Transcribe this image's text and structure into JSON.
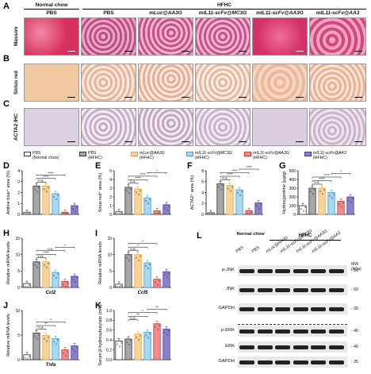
{
  "panels": {
    "A": "A",
    "B": "B",
    "C": "C",
    "D": "D",
    "E": "E",
    "F": "F",
    "G": "G",
    "H": "H",
    "I": "I",
    "J": "J",
    "K": "K",
    "L": "L"
  },
  "headers": {
    "normal_chow": "Normal chow",
    "hfhc": "HFHC"
  },
  "column_labels": [
    "PBS",
    "PBS",
    "mLuc@AA3G",
    "mIL11-scFv@MC3G",
    "mIL11-scFv@AA3G",
    "mIL11-scFv@AA3"
  ],
  "row_labels": [
    "Masson",
    "Sirius red",
    "ACTA2 IHC"
  ],
  "legend": [
    {
      "label": "PBS",
      "sub": "(Normal chow)",
      "color": "#ffffff",
      "border": "#333333"
    },
    {
      "label": "PBS",
      "sub": "(HFHC)",
      "color": "#a6a6a6",
      "border": "#333333"
    },
    {
      "label": "mLuc@AA3G",
      "sub": "(HFHC)",
      "color": "#f9d49a",
      "border": "#f0a030"
    },
    {
      "label": "mIL11-scFv@MC3G",
      "sub": "(HFHC)",
      "color": "#a9d8f2",
      "border": "#3aa0d8"
    },
    {
      "label": "mIL11-scFv@AA3G",
      "sub": "(HFHC)",
      "color": "#f28b8b",
      "border": "#d62e2e"
    },
    {
      "label": "mIL11-scFv@AA3",
      "sub": "(HFHC)",
      "color": "#8c7fd0",
      "border": "#43359e"
    }
  ],
  "chart_data": [
    {
      "panel": "D",
      "type": "bar",
      "ylabel": "Aniline blue⁺ area (%)",
      "ylim": [
        0,
        4
      ],
      "yticks": [
        "0",
        "1",
        "2",
        "3",
        "4"
      ],
      "values": [
        0.2,
        2.6,
        2.6,
        1.9,
        0.2,
        0.8
      ],
      "sig": [
        "n.s.",
        "****",
        "****"
      ]
    },
    {
      "panel": "E",
      "type": "bar",
      "ylabel": "Sirius red⁺ area (%)",
      "ylim": [
        0,
        5
      ],
      "yticks": [
        "0",
        "1",
        "2",
        "3",
        "4",
        "5"
      ],
      "values": [
        0.3,
        3.1,
        2.9,
        1.9,
        0.4,
        1.1
      ],
      "sig": [
        "n.s.",
        "****",
        "****",
        "*"
      ]
    },
    {
      "panel": "F",
      "type": "bar",
      "ylabel": "ACTA2⁺ area (%)",
      "ylim": [
        0,
        8
      ],
      "yticks": [
        "0",
        "2",
        "4",
        "6",
        "8"
      ],
      "values": [
        0.3,
        5.6,
        5.3,
        4.5,
        0.7,
        2.1
      ],
      "sig": [
        "n.s.",
        "****",
        "****",
        "****"
      ]
    },
    {
      "panel": "G",
      "type": "bar",
      "ylabel": "Hydroxyproline (μg/g)",
      "ylim": [
        0,
        500
      ],
      "yticks": [
        "0",
        "100",
        "200",
        "300",
        "400",
        "500"
      ],
      "values": [
        100,
        300,
        300,
        250,
        150,
        200
      ],
      "sig": [
        "n.s.",
        "****",
        "****",
        "*"
      ]
    },
    {
      "panel": "H",
      "type": "bar",
      "ylabel": "Relative mRNA levels",
      "gene": "Ccl2",
      "ylim": [
        0,
        15
      ],
      "yticks": [
        "0",
        "5",
        "10",
        "15"
      ],
      "values": [
        1.2,
        7.8,
        7.8,
        4.6,
        1.8,
        3.4
      ],
      "sig": [
        "n.s.",
        "****",
        "n.s.",
        "*"
      ]
    },
    {
      "panel": "I",
      "type": "bar",
      "ylabel": "Relative mRNA levels",
      "gene": "Ccl5",
      "ylim": [
        0,
        15
      ],
      "yticks": [
        "0",
        "5",
        "10",
        "15"
      ],
      "values": [
        1.0,
        10.0,
        10.0,
        7.5,
        2.5,
        4.8
      ],
      "sig": [
        "n.s.",
        "*",
        "*"
      ]
    },
    {
      "panel": "J",
      "type": "bar",
      "ylabel": "Relative mRNA levels",
      "gene": "Tnfa",
      "ylim": [
        0,
        10
      ],
      "yticks": [
        "0",
        "5",
        "10"
      ],
      "values": [
        1.0,
        5.4,
        4.9,
        4.3,
        2.0,
        2.8
      ],
      "sig": [
        "n.s.",
        "**",
        "*"
      ]
    },
    {
      "panel": "K",
      "type": "bar",
      "ylabel": "Serum β-hydroxybutyrate (mM)",
      "ylim": [
        0,
        1.0
      ],
      "yticks": [
        "0.0",
        "0.2",
        "0.4",
        "0.6",
        "0.8",
        "1.0"
      ],
      "values": [
        0.38,
        0.42,
        0.52,
        0.56,
        0.73,
        0.62
      ],
      "sig": [
        "n.s.",
        "**",
        "*",
        "**"
      ]
    }
  ],
  "blot": {
    "header_normal": "Normal chow",
    "header_hfhc": "HFHC",
    "lanes": [
      "PBS",
      "PBS",
      "mLuc@AA3G",
      "mIL11-scFv@MC3G",
      "mIL11-scFv@AA3G",
      "mIL11-scFv@AA3"
    ],
    "mw_header": "MW (kDa)",
    "rows": [
      {
        "label": "p-JNK",
        "mw": "50"
      },
      {
        "label": "JNK",
        "mw": "50"
      },
      {
        "label": "GAPDH",
        "mw": "35"
      },
      {
        "label": "p-ERK",
        "mw": "40"
      },
      {
        "label": "ERK",
        "mw": "40"
      },
      {
        "label": "GAPDH",
        "mw": "35"
      }
    ]
  }
}
